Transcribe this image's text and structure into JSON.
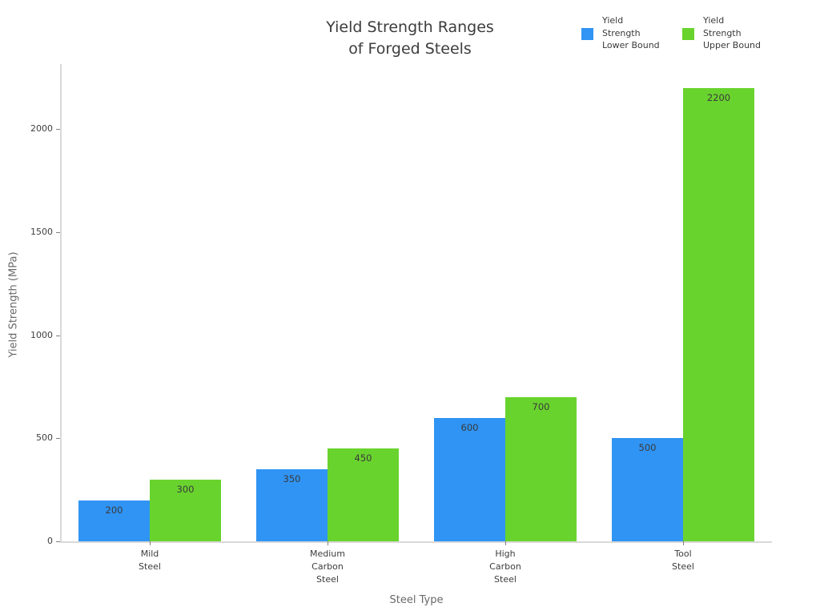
{
  "title": "Yield Strength Ranges\nof Forged Steels",
  "chart_data": {
    "type": "bar",
    "title": "Yield Strength Ranges of Forged Steels",
    "categories": [
      "Mild\nSteel",
      "Medium\nCarbon\nSteel",
      "High\nCarbon\nSteel",
      "Tool\nSteel"
    ],
    "series": [
      {
        "name": "Yield\nStrength\nLower Bound",
        "color": "#3094f4",
        "values": [
          200,
          350,
          600,
          500
        ]
      },
      {
        "name": "Yield\nStrength\nUpper Bound",
        "color": "#69d32e",
        "values": [
          300,
          450,
          700,
          2200
        ]
      }
    ],
    "xlabel": "Steel Type",
    "ylabel": "Yield Strength (MPa)",
    "yticks": [
      0,
      500,
      1000,
      1500,
      2000
    ],
    "ylim": [
      0,
      2316
    ],
    "grid": false,
    "legend_position": "top-right",
    "value_labels": true
  }
}
